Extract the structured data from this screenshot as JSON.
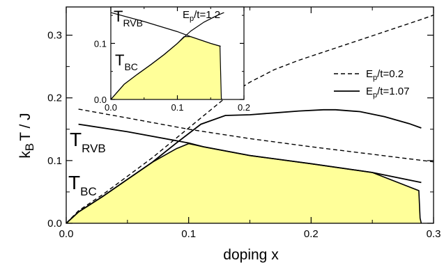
{
  "chart_data": [
    {
      "type": "line",
      "role": "main",
      "xlabel": "doping x",
      "ylabel_parts": {
        "main": "k",
        "sub": "B",
        "rest": "T / J"
      },
      "xlim": [
        0.0,
        0.3
      ],
      "ylim": [
        0.0,
        0.345
      ],
      "xticks": [
        "0.0",
        "0.1",
        "0.2",
        "0.3"
      ],
      "yticks": [
        "0.0",
        "0.1",
        "0.2",
        "0.3"
      ],
      "fill_color": "#ffff99",
      "fill_series": "T_BC",
      "series": [
        {
          "name": "E_p/t=0.2",
          "label_main": "E",
          "label_sub": "p",
          "label_rest": "/t=0.2",
          "style": "dashed",
          "curves": {
            "T_BC": [
              [
                0.0,
                0.0
              ],
              [
                0.01,
                0.02
              ],
              [
                0.03,
                0.046
              ],
              [
                0.05,
                0.075
              ],
              [
                0.07,
                0.104
              ],
              [
                0.09,
                0.136
              ],
              [
                0.11,
                0.168
              ],
              [
                0.13,
                0.2
              ],
              [
                0.15,
                0.225
              ],
              [
                0.17,
                0.245
              ],
              [
                0.19,
                0.26
              ],
              [
                0.21,
                0.273
              ],
              [
                0.23,
                0.286
              ],
              [
                0.25,
                0.299
              ],
              [
                0.27,
                0.312
              ],
              [
                0.29,
                0.325
              ],
              [
                0.3,
                0.332
              ]
            ],
            "T_RVB": [
              [
                0.01,
                0.182
              ],
              [
                0.05,
                0.168
              ],
              [
                0.1,
                0.15
              ],
              [
                0.15,
                0.135
              ],
              [
                0.2,
                0.122
              ],
              [
                0.25,
                0.11
              ],
              [
                0.3,
                0.098
              ]
            ]
          }
        },
        {
          "name": "E_p/t=1.07",
          "label_main": "E",
          "label_sub": "p",
          "label_rest": "/t=1.07",
          "style": "solid",
          "curves": {
            "T_BC": [
              [
                0.0,
                0.0
              ],
              [
                0.01,
                0.018
              ],
              [
                0.03,
                0.043
              ],
              [
                0.05,
                0.07
              ],
              [
                0.07,
                0.097
              ],
              [
                0.09,
                0.128
              ],
              [
                0.11,
                0.158
              ],
              [
                0.13,
                0.172
              ],
              [
                0.15,
                0.173
              ],
              [
                0.17,
                0.176
              ],
              [
                0.19,
                0.179
              ],
              [
                0.21,
                0.181
              ],
              [
                0.22,
                0.181
              ],
              [
                0.24,
                0.178
              ],
              [
                0.26,
                0.17
              ],
              [
                0.28,
                0.159
              ],
              [
                0.29,
                0.152
              ]
            ],
            "T_RVB": [
              [
                0.01,
                0.158
              ],
              [
                0.05,
                0.146
              ],
              [
                0.1,
                0.128
              ],
              [
                0.112,
                0.122
              ],
              [
                0.15,
                0.108
              ],
              [
                0.2,
                0.095
              ],
              [
                0.25,
                0.081
              ],
              [
                0.29,
                0.065
              ]
            ]
          }
        }
      ],
      "fill_boundary": [
        [
          0.0,
          0.0
        ],
        [
          0.01,
          0.018
        ],
        [
          0.03,
          0.043
        ],
        [
          0.05,
          0.07
        ],
        [
          0.07,
          0.097
        ],
        [
          0.09,
          0.119
        ],
        [
          0.1,
          0.127
        ],
        [
          0.112,
          0.122
        ],
        [
          0.15,
          0.108
        ],
        [
          0.2,
          0.095
        ],
        [
          0.25,
          0.081
        ],
        [
          0.288,
          0.052
        ],
        [
          0.289,
          0.008
        ],
        [
          0.29,
          0.0
        ]
      ],
      "annotations": [
        {
          "main": "T",
          "sub": "RVB"
        },
        {
          "main": "T",
          "sub": "BC"
        }
      ]
    },
    {
      "type": "line",
      "role": "inset",
      "xlim": [
        0.0,
        0.2
      ],
      "ylim": [
        0.0,
        0.165
      ],
      "xticks": [
        "0.0",
        "0.1",
        "0.2"
      ],
      "yticks": [
        "0.0",
        "0.1"
      ],
      "fill_color": "#ffff99",
      "series": [
        {
          "name": "E_p/t=1.2",
          "label_main": "E",
          "label_sub": "p",
          "label_rest": "/t=1.2",
          "style": "solid",
          "curves": {
            "T_BC": [
              [
                0.0,
                0.0
              ],
              [
                0.02,
                0.027
              ],
              [
                0.04,
                0.045
              ],
              [
                0.06,
                0.062
              ],
              [
                0.08,
                0.08
              ],
              [
                0.1,
                0.1
              ],
              [
                0.12,
                0.122
              ],
              [
                0.14,
                0.138
              ],
              [
                0.16,
                0.15
              ],
              [
                0.17,
                0.155
              ]
            ],
            "T_RVB": [
              [
                0.0,
                0.155
              ],
              [
                0.05,
                0.139
              ],
              [
                0.1,
                0.121
              ],
              [
                0.12,
                0.112
              ],
              [
                0.15,
                0.1
              ],
              [
                0.165,
                0.095
              ]
            ]
          }
        }
      ],
      "fill_boundary": [
        [
          0.0,
          0.0
        ],
        [
          0.02,
          0.027
        ],
        [
          0.04,
          0.045
        ],
        [
          0.06,
          0.062
        ],
        [
          0.08,
          0.08
        ],
        [
          0.1,
          0.1
        ],
        [
          0.11,
          0.112
        ],
        [
          0.12,
          0.112
        ],
        [
          0.15,
          0.1
        ],
        [
          0.164,
          0.095
        ],
        [
          0.166,
          0.002
        ],
        [
          0.167,
          0.0
        ]
      ],
      "annotations": [
        {
          "main": "T",
          "sub": "RVB"
        },
        {
          "main": "T",
          "sub": "BC"
        }
      ]
    }
  ]
}
